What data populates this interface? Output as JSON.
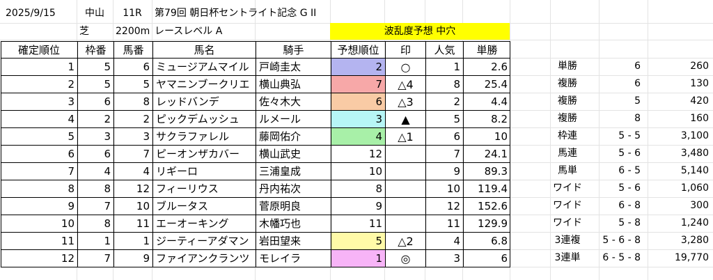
{
  "race": {
    "date": "2025/9/15",
    "venue": "中山",
    "race_no": "11R",
    "title": "第79回 朝日杯セントライト記念 G II",
    "surface": "芝",
    "distance": "2200m",
    "level": "レースレベル A",
    "upset_label": "波乱度予想 中穴"
  },
  "colors": {
    "upset_bg": "#ffff00",
    "rank_colors": [
      "#b4b4f0",
      "#f7a8a8",
      "#f9cba5",
      "#b7f6f6",
      "#a8f0a8",
      "#ffffff",
      "#ffffff",
      "#ffffff",
      "#ffffff",
      "#ffffff",
      "#fffaa8",
      "#f7b4f7"
    ]
  },
  "headers": [
    "確定順位",
    "枠番",
    "馬番",
    "馬名",
    "騎手",
    "予想順位",
    "印",
    "人気",
    "単勝"
  ],
  "rows": [
    {
      "pos": "1",
      "waku": "5",
      "uma": "6",
      "name": "ミュージアムマイル",
      "jockey": "戸崎圭太",
      "pred": "2",
      "mark": "○",
      "pop": "1",
      "odds": "2.6"
    },
    {
      "pos": "2",
      "waku": "5",
      "uma": "5",
      "name": "ヤマニンブークリエ",
      "jockey": "横山典弘",
      "pred": "7",
      "mark": "△4",
      "pop": "8",
      "odds": "25.4"
    },
    {
      "pos": "3",
      "waku": "6",
      "uma": "8",
      "name": "レッドバンデ",
      "jockey": "佐々木大",
      "pred": "6",
      "mark": "△3",
      "pop": "2",
      "odds": "4.4"
    },
    {
      "pos": "4",
      "waku": "2",
      "uma": "2",
      "name": "ピックデムッシュ",
      "jockey": "ルメール",
      "pred": "3",
      "mark": "▲",
      "pop": "5",
      "odds": "8.2"
    },
    {
      "pos": "5",
      "waku": "3",
      "uma": "3",
      "name": "サクラファレル",
      "jockey": "藤岡佑介",
      "pred": "4",
      "mark": "△1",
      "pop": "6",
      "odds": "10"
    },
    {
      "pos": "6",
      "waku": "6",
      "uma": "7",
      "name": "ピーオンザカバー",
      "jockey": "横山武史",
      "pred": "12",
      "mark": "",
      "pop": "7",
      "odds": "24.1"
    },
    {
      "pos": "7",
      "waku": "4",
      "uma": "4",
      "name": "リギーロ",
      "jockey": "三浦皇成",
      "pred": "10",
      "mark": "",
      "pop": "9",
      "odds": "89.3"
    },
    {
      "pos": "8",
      "waku": "8",
      "uma": "12",
      "name": "フィーリウス",
      "jockey": "丹内祐次",
      "pred": "8",
      "mark": "",
      "pop": "10",
      "odds": "119.4"
    },
    {
      "pos": "9",
      "waku": "7",
      "uma": "10",
      "name": "ブルータス",
      "jockey": "菅原明良",
      "pred": "9",
      "mark": "",
      "pop": "12",
      "odds": "152.6"
    },
    {
      "pos": "10",
      "waku": "8",
      "uma": "11",
      "name": "エーオーキング",
      "jockey": "木幡巧也",
      "pred": "11",
      "mark": "",
      "pop": "11",
      "odds": "129.9"
    },
    {
      "pos": "11",
      "waku": "1",
      "uma": "1",
      "name": "ジーティーアダマン",
      "jockey": "岩田望来",
      "pred": "5",
      "mark": "△2",
      "pop": "4",
      "odds": "6.8"
    },
    {
      "pos": "12",
      "waku": "7",
      "uma": "9",
      "name": "ファイアンクランツ",
      "jockey": "モレイラ",
      "pred": "1",
      "mark": "◎",
      "pop": "3",
      "odds": "6"
    }
  ],
  "payouts": [
    {
      "type": "単勝",
      "combo": "6",
      "amount": "260"
    },
    {
      "type": "複勝",
      "combo": "6",
      "amount": "130"
    },
    {
      "type": "複勝",
      "combo": "5",
      "amount": "420"
    },
    {
      "type": "複勝",
      "combo": "8",
      "amount": "160"
    },
    {
      "type": "枠連",
      "combo": "5 - 5",
      "amount": "3,100"
    },
    {
      "type": "馬連",
      "combo": "5 - 6",
      "amount": "3,480"
    },
    {
      "type": "馬単",
      "combo": "6 - 5",
      "amount": "5,140"
    },
    {
      "type": "ワイド",
      "combo": "5 - 6",
      "amount": "1,060"
    },
    {
      "type": "ワイド",
      "combo": "6 - 8",
      "amount": "300"
    },
    {
      "type": "ワイド",
      "combo": "5 - 8",
      "amount": "1,240"
    },
    {
      "type": "3連複",
      "combo": "5 - 6 - 8",
      "amount": "3,280"
    },
    {
      "type": "3連単",
      "combo": "6 - 5 - 8",
      "amount": "19,770"
    }
  ]
}
